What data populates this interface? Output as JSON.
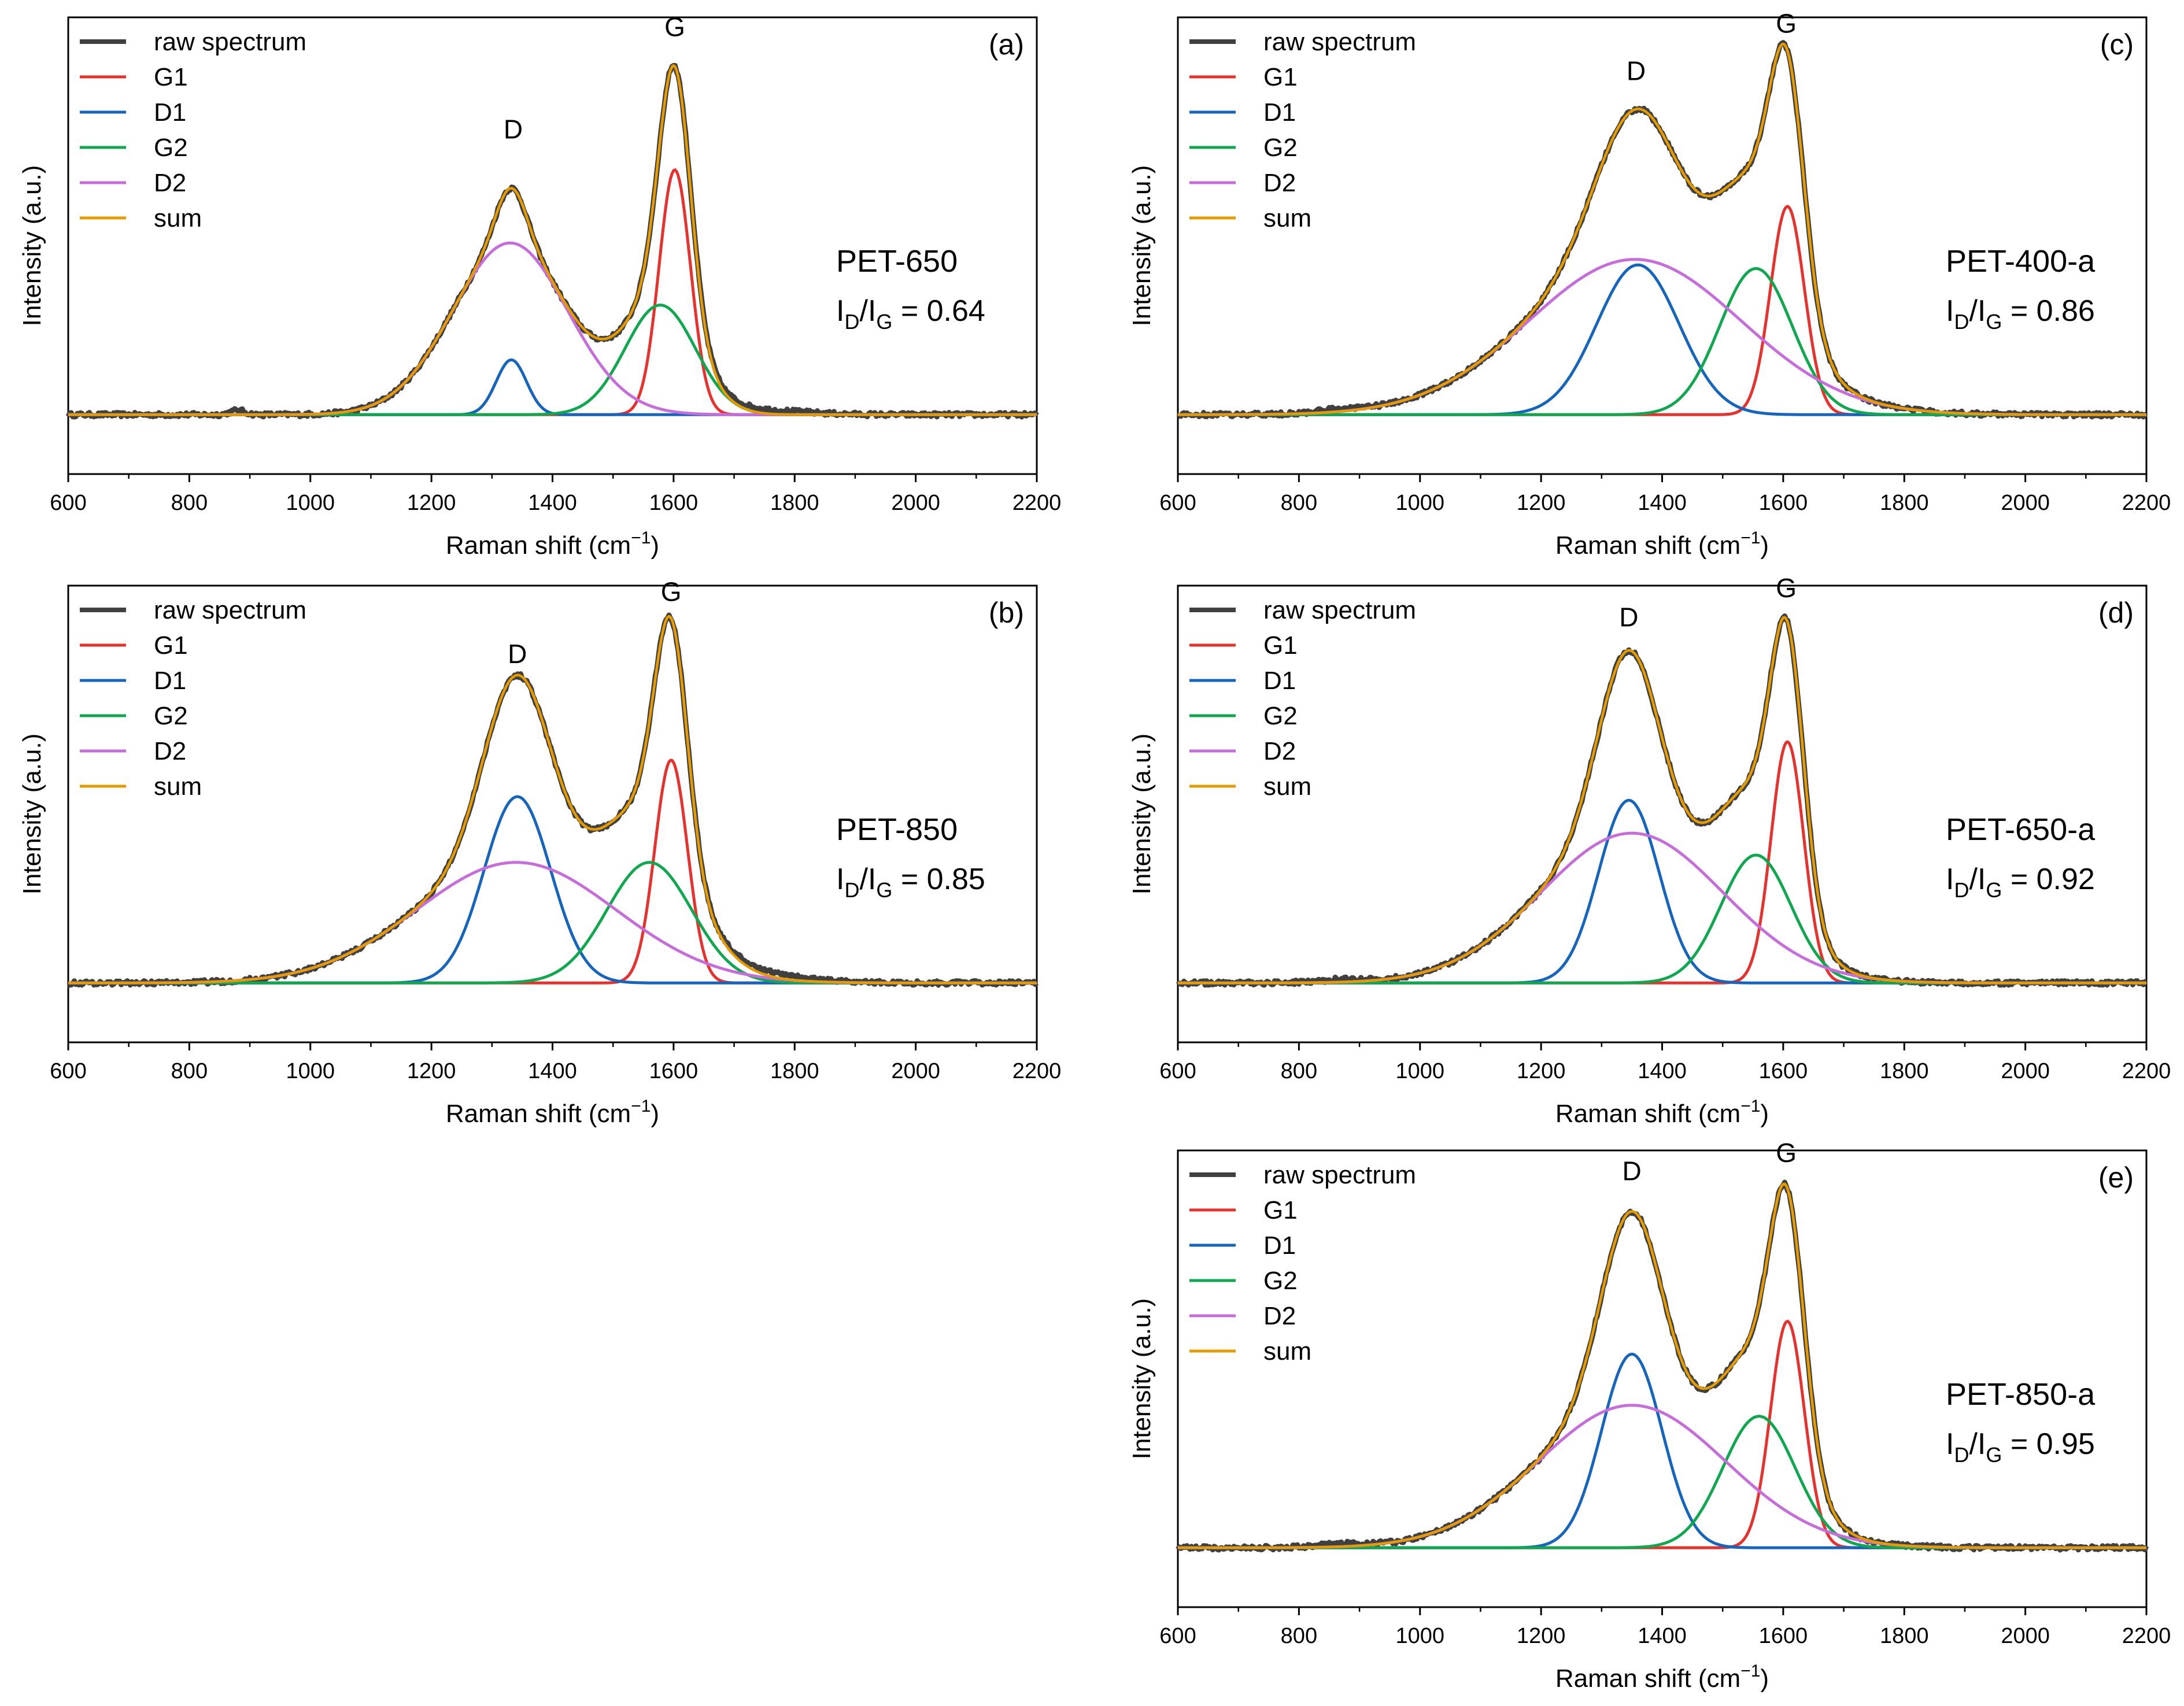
{
  "chart_data": [
    {
      "type": "line",
      "panel": "(a)",
      "sample": "PET-650",
      "ratio": {
        "text_main": "I",
        "text_sub_d": "D",
        "text_slash": "/I",
        "text_sub_g": "G",
        "value_text": " = 0.64",
        "value": 0.64
      },
      "xlabel": {
        "main": "Raman shift (cm",
        "sup": "−1",
        "end": ")"
      },
      "ylabel": "Intensity (a.u.)",
      "xlim": [
        600,
        2200
      ],
      "xticks": [
        600,
        800,
        1000,
        1200,
        1400,
        1600,
        1800,
        2000,
        2200
      ],
      "ylim": [
        0,
        1.1
      ],
      "peak_labels": [
        {
          "text": "D",
          "x": 1335,
          "y": 0.74
        },
        {
          "text": "G",
          "x": 1602,
          "y": 1.02
        }
      ],
      "legend": [
        "raw spectrum",
        "G1",
        "D1",
        "G2",
        "D2",
        "sum"
      ],
      "series": [
        {
          "name": "G1",
          "color": "#e8302c",
          "peaks": [
            {
              "c": 1602,
              "w": 26,
              "a": 0.67
            }
          ]
        },
        {
          "name": "D1",
          "color": "#1565c0",
          "peaks": [
            {
              "c": 1332,
              "w": 25,
              "a": 0.15
            }
          ]
        },
        {
          "name": "G2",
          "color": "#10a84f",
          "peaks": [
            {
              "c": 1578,
              "w": 58,
              "a": 0.3
            }
          ]
        },
        {
          "name": "D2",
          "color": "#c76cdb",
          "peaks": [
            {
              "c": 1330,
              "w": 95,
              "a": 0.47
            }
          ]
        }
      ],
      "extra_raw": [
        {
          "c": 880,
          "w": 12,
          "a": 0.012
        },
        {
          "c": 1740,
          "w": 75,
          "a": 0.012
        }
      ]
    },
    {
      "type": "line",
      "panel": "(b)",
      "sample": "PET-850",
      "ratio": {
        "text_main": "I",
        "text_sub_d": "D",
        "text_slash": "/I",
        "text_sub_g": "G",
        "value_text": " = 0.85",
        "value": 0.85
      },
      "xlabel": {
        "main": "Raman shift (cm",
        "sup": "−1",
        "end": ")"
      },
      "ylabel": "Intensity (a.u.)",
      "xlim": [
        600,
        2200
      ],
      "xticks": [
        600,
        800,
        1000,
        1200,
        1400,
        1600,
        1800,
        2000,
        2200
      ],
      "ylim": [
        0,
        1.1
      ],
      "peak_labels": [
        {
          "text": "D",
          "x": 1342,
          "y": 0.86
        },
        {
          "text": "G",
          "x": 1596,
          "y": 1.03
        }
      ],
      "legend": [
        "raw spectrum",
        "G1",
        "D1",
        "G2",
        "D2",
        "sum"
      ],
      "series": [
        {
          "name": "G1",
          "color": "#e8302c",
          "peaks": [
            {
              "c": 1596,
              "w": 27,
              "a": 0.61
            }
          ]
        },
        {
          "name": "D1",
          "color": "#1565c0",
          "peaks": [
            {
              "c": 1342,
              "w": 55,
              "a": 0.51
            }
          ]
        },
        {
          "name": "G2",
          "color": "#10a84f",
          "peaks": [
            {
              "c": 1560,
              "w": 70,
              "a": 0.33
            }
          ]
        },
        {
          "name": "D2",
          "color": "#c76cdb",
          "peaks": [
            {
              "c": 1340,
              "w": 165,
              "a": 0.33
            }
          ]
        }
      ],
      "extra_raw": [
        {
          "c": 1760,
          "w": 80,
          "a": 0.012
        }
      ]
    },
    {
      "type": "line",
      "panel": "(c)",
      "sample": "PET-400-a",
      "ratio": {
        "text_main": "I",
        "text_sub_d": "D",
        "text_slash": "/I",
        "text_sub_g": "G",
        "value_text": " = 0.86",
        "value": 0.86
      },
      "xlabel": {
        "main": "Raman shift (cm",
        "sup": "−1",
        "end": ")"
      },
      "ylabel": "Intensity (a.u.)",
      "xlim": [
        600,
        2200
      ],
      "xticks": [
        600,
        800,
        1000,
        1200,
        1400,
        1600,
        1800,
        2000,
        2200
      ],
      "ylim": [
        0,
        1.1
      ],
      "peak_labels": [
        {
          "text": "D",
          "x": 1357,
          "y": 0.9
        },
        {
          "text": "G",
          "x": 1605,
          "y": 1.03
        }
      ],
      "legend": [
        "raw spectrum",
        "G1",
        "D1",
        "G2",
        "D2",
        "sum"
      ],
      "series": [
        {
          "name": "G1",
          "color": "#e8302c",
          "peaks": [
            {
              "c": 1607,
              "w": 28,
              "a": 0.57
            }
          ]
        },
        {
          "name": "D1",
          "color": "#1565c0",
          "peaks": [
            {
              "c": 1360,
              "w": 68,
              "a": 0.41
            }
          ]
        },
        {
          "name": "G2",
          "color": "#10a84f",
          "peaks": [
            {
              "c": 1555,
              "w": 60,
              "a": 0.4
            }
          ]
        },
        {
          "name": "D2",
          "color": "#c76cdb",
          "peaks": [
            {
              "c": 1355,
              "w": 175,
              "a": 0.425
            }
          ]
        }
      ],
      "extra_raw": [
        {
          "c": 870,
          "w": 40,
          "a": 0.008
        }
      ]
    },
    {
      "type": "line",
      "panel": "(d)",
      "sample": "PET-650-a",
      "ratio": {
        "text_main": "I",
        "text_sub_d": "D",
        "text_slash": "/I",
        "text_sub_g": "G",
        "value_text": " = 0.92",
        "value": 0.92
      },
      "xlabel": {
        "main": "Raman shift (cm",
        "sup": "−1",
        "end": ")"
      },
      "ylabel": "Intensity (a.u.)",
      "xlim": [
        600,
        2200
      ],
      "xticks": [
        600,
        800,
        1000,
        1200,
        1400,
        1600,
        1800,
        2000,
        2200
      ],
      "ylim": [
        0,
        1.1
      ],
      "peak_labels": [
        {
          "text": "D",
          "x": 1345,
          "y": 0.96
        },
        {
          "text": "G",
          "x": 1605,
          "y": 1.04
        }
      ],
      "legend": [
        "raw spectrum",
        "G1",
        "D1",
        "G2",
        "D2",
        "sum"
      ],
      "series": [
        {
          "name": "G1",
          "color": "#e8302c",
          "peaks": [
            {
              "c": 1607,
              "w": 27,
              "a": 0.66
            }
          ]
        },
        {
          "name": "D1",
          "color": "#1565c0",
          "peaks": [
            {
              "c": 1345,
              "w": 50,
              "a": 0.5
            }
          ]
        },
        {
          "name": "G2",
          "color": "#10a84f",
          "peaks": [
            {
              "c": 1555,
              "w": 58,
              "a": 0.35
            }
          ]
        },
        {
          "name": "D2",
          "color": "#c76cdb",
          "peaks": [
            {
              "c": 1350,
              "w": 150,
              "a": 0.41
            }
          ]
        }
      ],
      "extra_raw": [
        {
          "c": 870,
          "w": 40,
          "a": 0.008
        }
      ]
    },
    {
      "type": "line",
      "panel": "(e)",
      "sample": "PET-850-a",
      "ratio": {
        "text_main": "I",
        "text_sub_d": "D",
        "text_slash": "/I",
        "text_sub_g": "G",
        "value_text": " = 0.95",
        "value": 0.95
      },
      "xlabel": {
        "main": "Raman shift (cm",
        "sup": "−1",
        "end": ")"
      },
      "ylabel": "Intensity (a.u.)",
      "xlim": [
        600,
        2200
      ],
      "xticks": [
        600,
        800,
        1000,
        1200,
        1400,
        1600,
        1800,
        2000,
        2200
      ],
      "ylim": [
        0,
        1.1
      ],
      "peak_labels": [
        {
          "text": "D",
          "x": 1350,
          "y": 0.99
        },
        {
          "text": "G",
          "x": 1605,
          "y": 1.04
        }
      ],
      "legend": [
        "raw spectrum",
        "G1",
        "D1",
        "G2",
        "D2",
        "sum"
      ],
      "series": [
        {
          "name": "G1",
          "color": "#e8302c",
          "peaks": [
            {
              "c": 1607,
              "w": 28,
              "a": 0.62
            }
          ]
        },
        {
          "name": "D1",
          "color": "#1565c0",
          "peaks": [
            {
              "c": 1350,
              "w": 50,
              "a": 0.53
            }
          ]
        },
        {
          "name": "G2",
          "color": "#10a84f",
          "peaks": [
            {
              "c": 1560,
              "w": 60,
              "a": 0.36
            }
          ]
        },
        {
          "name": "D2",
          "color": "#c76cdb",
          "peaks": [
            {
              "c": 1350,
              "w": 155,
              "a": 0.39
            }
          ]
        }
      ],
      "extra_raw": [
        {
          "c": 870,
          "w": 40,
          "a": 0.008
        }
      ]
    }
  ],
  "styles": {
    "raw_color": "#404040",
    "sum_color": "#e69b00",
    "axis_color": "#000000"
  }
}
